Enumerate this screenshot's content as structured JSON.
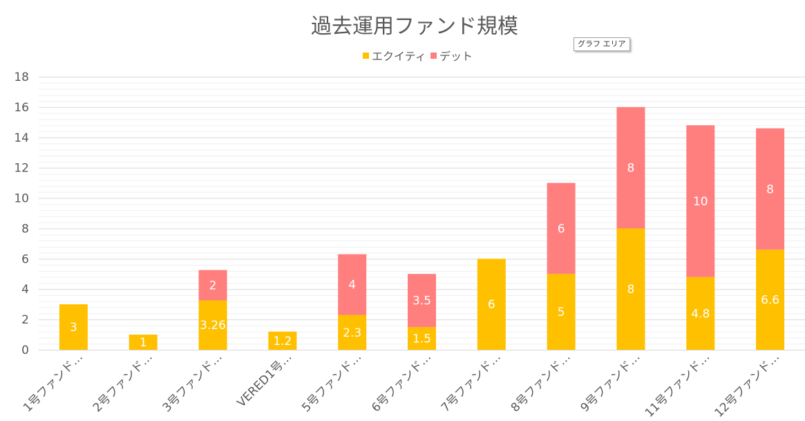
{
  "chart_data": {
    "type": "bar",
    "stacked": true,
    "title": "過去運用ファンド規模",
    "categories": [
      "1号ファンド…",
      "2号ファンド…",
      "3号ファンド…",
      "VERED1号…",
      "5号ファンド…",
      "6号ファンド…",
      "7号ファンド…",
      "8号ファンド…",
      "9号ファンド…",
      "11号ファンド…",
      "12号ファンド…"
    ],
    "series": [
      {
        "name": "エクイティ",
        "color": "#FFC000",
        "values": [
          3,
          1,
          3.26,
          1.2,
          2.3,
          1.5,
          6,
          5,
          8,
          4.8,
          6.6
        ],
        "labels": [
          "3",
          "1",
          "3.26",
          "1.2",
          "2.3",
          "1.5",
          "6",
          "5",
          "8",
          "4.8",
          "6.6"
        ]
      },
      {
        "name": "デット",
        "color": "#FF7F7F",
        "values": [
          null,
          null,
          2,
          null,
          4,
          3.5,
          null,
          6,
          8,
          10,
          8
        ],
        "labels": [
          "",
          "",
          "2",
          "",
          "4",
          "3.5",
          "",
          "6",
          "8",
          "10",
          "8"
        ]
      }
    ],
    "y_ticks": [
      "0",
      "2",
      "4",
      "6",
      "8",
      "10",
      "12",
      "14",
      "16",
      "18"
    ],
    "ylim": [
      0,
      18
    ],
    "grid": true,
    "legend_position": "top"
  },
  "tooltip": "グラフ エリア"
}
